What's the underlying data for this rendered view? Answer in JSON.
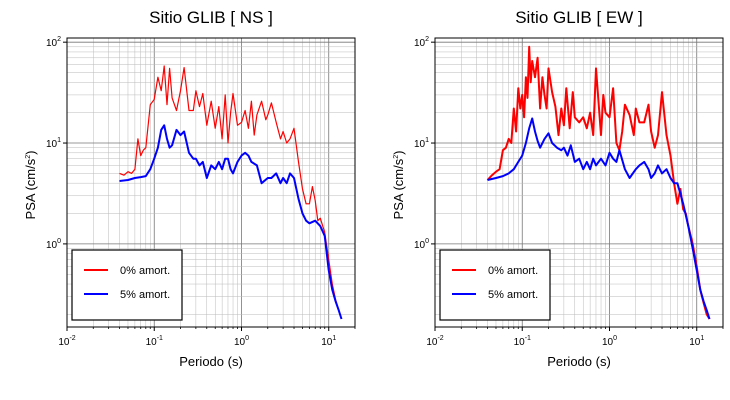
{
  "chart_data": [
    {
      "type": "line",
      "title": "Sitio GLIB [ NS ]",
      "xlabel": "Periodo (s)",
      "ylabel": "PSA (cm/s²)",
      "xscale": "log",
      "yscale": "log",
      "xlim": [
        0.01,
        20
      ],
      "ylim": [
        0.15,
        110
      ],
      "xticks": [
        {
          "base": "10",
          "exp": "-2"
        },
        {
          "base": "10",
          "exp": "-1"
        },
        {
          "base": "10",
          "exp": "0"
        },
        {
          "base": "10",
          "exp": "1"
        }
      ],
      "yticks": [
        {
          "base": "10",
          "exp": "0"
        },
        {
          "base": "10",
          "exp": "1"
        },
        {
          "base": "10",
          "exp": "2"
        }
      ],
      "grid": true,
      "legend": "bottom-left",
      "series": [
        {
          "name": "0% amort.",
          "color": "#ff0000",
          "x": [
            0.04,
            0.045,
            0.05,
            0.055,
            0.06,
            0.065,
            0.07,
            0.075,
            0.08,
            0.09,
            0.1,
            0.11,
            0.12,
            0.13,
            0.14,
            0.15,
            0.16,
            0.18,
            0.2,
            0.22,
            0.25,
            0.28,
            0.3,
            0.33,
            0.36,
            0.4,
            0.45,
            0.5,
            0.55,
            0.6,
            0.65,
            0.7,
            0.75,
            0.8,
            0.9,
            1.0,
            1.1,
            1.2,
            1.3,
            1.4,
            1.5,
            1.7,
            1.9,
            2.0,
            2.2,
            2.5,
            2.8,
            3.0,
            3.3,
            3.6,
            4.0,
            4.5,
            5.0,
            5.5,
            6.0,
            6.5,
            7.0,
            7.5,
            8.0,
            9.0,
            10.0,
            11.0,
            12.0,
            13.0,
            14.0
          ],
          "values": [
            5.0,
            4.8,
            5.2,
            5.0,
            5.5,
            11.0,
            7.5,
            8.5,
            9.0,
            24.0,
            27.0,
            45.0,
            33.0,
            58.0,
            24.0,
            55.0,
            28.0,
            21.0,
            33.0,
            56.0,
            21.0,
            21.0,
            33.0,
            23.0,
            31.0,
            15.0,
            26.0,
            14.0,
            23.0,
            11.0,
            30.0,
            10.0,
            20.0,
            31.0,
            15.0,
            16.0,
            21.0,
            14.0,
            26.0,
            12.0,
            19.0,
            26.0,
            17.0,
            19.0,
            25.0,
            16.0,
            11.0,
            13.0,
            10.0,
            11.0,
            14.0,
            6.5,
            3.5,
            2.5,
            2.5,
            3.7,
            2.7,
            1.7,
            1.8,
            1.3,
            0.7,
            0.4,
            0.28,
            0.22,
            0.18
          ]
        },
        {
          "name": "5% amort.",
          "color": "#0000ff",
          "x": [
            0.04,
            0.05,
            0.06,
            0.07,
            0.08,
            0.09,
            0.1,
            0.11,
            0.12,
            0.13,
            0.14,
            0.15,
            0.16,
            0.18,
            0.2,
            0.22,
            0.25,
            0.28,
            0.3,
            0.33,
            0.36,
            0.4,
            0.45,
            0.5,
            0.55,
            0.6,
            0.65,
            0.7,
            0.75,
            0.8,
            0.9,
            1.0,
            1.1,
            1.2,
            1.3,
            1.5,
            1.7,
            2.0,
            2.2,
            2.5,
            2.8,
            3.0,
            3.3,
            3.6,
            4.0,
            4.5,
            5.0,
            5.5,
            6.0,
            7.0,
            8.0,
            9.0,
            10.0,
            11.0,
            12.0,
            13.0,
            14.0
          ],
          "values": [
            4.2,
            4.3,
            4.5,
            4.6,
            4.7,
            5.5,
            7.0,
            9.0,
            13.5,
            15.0,
            11.0,
            9.0,
            9.5,
            13.5,
            12.0,
            13.0,
            8.0,
            7.0,
            7.0,
            6.0,
            6.5,
            4.5,
            6.0,
            5.5,
            6.5,
            5.5,
            7.0,
            7.0,
            5.5,
            5.0,
            6.5,
            7.5,
            8.0,
            7.5,
            6.5,
            6.0,
            4.0,
            4.5,
            4.5,
            5.0,
            4.0,
            4.5,
            4.0,
            5.0,
            4.5,
            2.8,
            2.0,
            1.7,
            1.6,
            1.7,
            1.5,
            1.2,
            0.55,
            0.35,
            0.27,
            0.22,
            0.18
          ]
        }
      ],
      "legend_entries": [
        "0% amort.",
        "5% amort."
      ]
    },
    {
      "type": "line",
      "title": "Sitio GLIB [ EW ]",
      "xlabel": "Periodo (s)",
      "ylabel": "PSA (cm/s²)",
      "xscale": "log",
      "yscale": "log",
      "xlim": [
        0.01,
        20
      ],
      "ylim": [
        0.15,
        110
      ],
      "xticks": [
        {
          "base": "10",
          "exp": "-2"
        },
        {
          "base": "10",
          "exp": "-1"
        },
        {
          "base": "10",
          "exp": "0"
        },
        {
          "base": "10",
          "exp": "1"
        }
      ],
      "yticks": [
        {
          "base": "10",
          "exp": "0"
        },
        {
          "base": "10",
          "exp": "1"
        },
        {
          "base": "10",
          "exp": "2"
        }
      ],
      "grid": true,
      "legend": "bottom-left",
      "series": [
        {
          "name": "0% amort.",
          "color": "#ff0000",
          "x": [
            0.04,
            0.045,
            0.05,
            0.055,
            0.06,
            0.065,
            0.07,
            0.075,
            0.08,
            0.085,
            0.09,
            0.095,
            0.1,
            0.105,
            0.11,
            0.115,
            0.12,
            0.125,
            0.13,
            0.14,
            0.15,
            0.16,
            0.17,
            0.18,
            0.19,
            0.2,
            0.22,
            0.24,
            0.26,
            0.28,
            0.3,
            0.32,
            0.35,
            0.38,
            0.4,
            0.45,
            0.5,
            0.55,
            0.6,
            0.65,
            0.7,
            0.75,
            0.8,
            0.85,
            0.9,
            1.0,
            1.1,
            1.2,
            1.3,
            1.4,
            1.5,
            1.7,
            1.9,
            2.0,
            2.2,
            2.5,
            2.8,
            3.0,
            3.3,
            3.6,
            4.0,
            4.5,
            5.0,
            5.5,
            6.0,
            6.5,
            7.0,
            7.5,
            8.0,
            9.0,
            10.0,
            11.0,
            12.0,
            13.0,
            14.0
          ],
          "values": [
            4.3,
            4.8,
            5.2,
            5.5,
            8.5,
            9.0,
            11.0,
            10.0,
            22.0,
            13.0,
            35.0,
            22.0,
            30.0,
            18.0,
            45.0,
            28.0,
            90.0,
            40.0,
            65.0,
            45.0,
            70.0,
            22.0,
            45.0,
            30.0,
            22.0,
            55.0,
            32.0,
            23.0,
            12.0,
            22.0,
            15.0,
            35.0,
            14.0,
            32.0,
            18.0,
            16.0,
            18.0,
            14.0,
            20.0,
            12.0,
            55.0,
            25.0,
            12.0,
            30.0,
            20.0,
            18.0,
            35.0,
            10.0,
            8.5,
            13.0,
            24.0,
            19.0,
            12.0,
            22.0,
            16.0,
            16.0,
            24.0,
            13.0,
            9.0,
            12.0,
            32.0,
            12.0,
            7.5,
            4.0,
            2.5,
            3.5,
            2.2,
            2.0,
            1.5,
            1.0,
            0.6,
            0.35,
            0.26,
            0.2,
            0.18
          ]
        },
        {
          "name": "5% amort.",
          "color": "#0000ff",
          "x": [
            0.04,
            0.05,
            0.06,
            0.07,
            0.08,
            0.09,
            0.1,
            0.11,
            0.12,
            0.13,
            0.14,
            0.15,
            0.16,
            0.18,
            0.2,
            0.22,
            0.25,
            0.28,
            0.3,
            0.33,
            0.36,
            0.4,
            0.45,
            0.5,
            0.55,
            0.6,
            0.65,
            0.7,
            0.75,
            0.8,
            0.9,
            1.0,
            1.1,
            1.2,
            1.3,
            1.5,
            1.7,
            2.0,
            2.2,
            2.5,
            2.8,
            3.0,
            3.3,
            3.6,
            4.0,
            4.5,
            5.0,
            5.5,
            6.0,
            7.0,
            8.0,
            9.0,
            10.0,
            11.0,
            12.0,
            13.0,
            14.0
          ],
          "values": [
            4.3,
            4.5,
            4.7,
            5.0,
            5.5,
            6.5,
            7.5,
            10.0,
            14.0,
            17.5,
            13.0,
            10.5,
            9.0,
            11.0,
            12.5,
            10.0,
            9.0,
            8.5,
            9.0,
            7.5,
            9.5,
            6.5,
            7.0,
            5.5,
            6.5,
            5.5,
            7.0,
            6.0,
            6.5,
            7.0,
            6.0,
            8.0,
            7.0,
            6.5,
            8.5,
            5.5,
            4.5,
            5.5,
            6.0,
            6.5,
            5.5,
            4.5,
            5.0,
            6.0,
            5.0,
            5.5,
            4.5,
            4.0,
            4.0,
            2.5,
            1.5,
            0.9,
            0.55,
            0.35,
            0.27,
            0.22,
            0.18
          ]
        }
      ],
      "legend_entries": [
        "0% amort.",
        "5% amort."
      ]
    }
  ]
}
